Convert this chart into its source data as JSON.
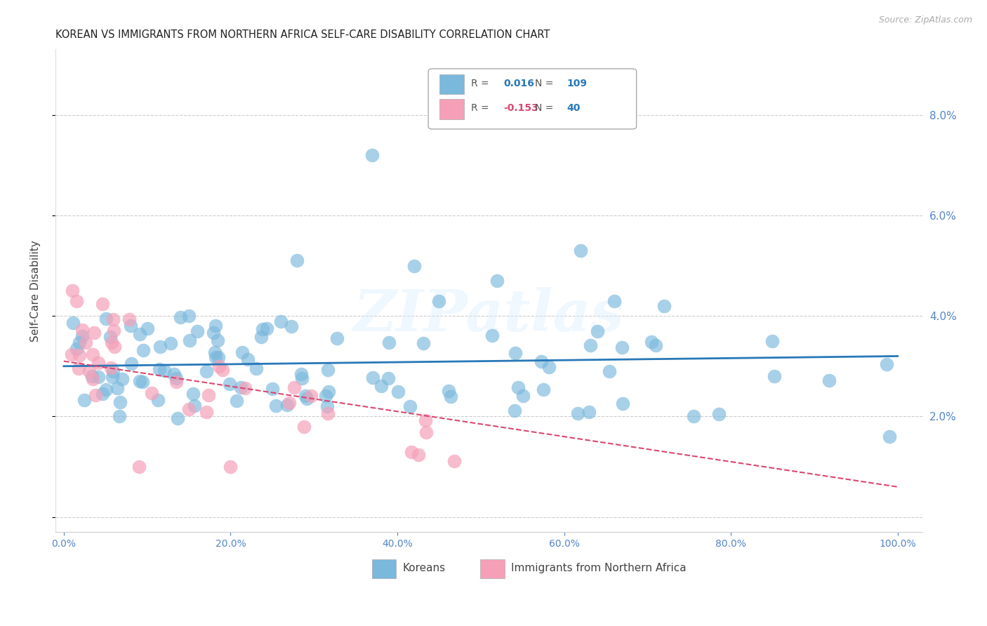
{
  "title": "KOREAN VS IMMIGRANTS FROM NORTHERN AFRICA SELF-CARE DISABILITY CORRELATION CHART",
  "source": "Source: ZipAtlas.com",
  "ylabel": "Self-Care Disability",
  "blue_color": "#7ab8dc",
  "blue_line_color": "#2878b8",
  "pink_color": "#f5a0b8",
  "pink_line_color": "#d84870",
  "axis_color": "#5585c8",
  "background_color": "#ffffff",
  "grid_color": "#cccccc",
  "watermark": "ZIPatlas",
  "koreans_R": "0.016",
  "koreans_N": "109",
  "nafr_R": "-0.153",
  "nafr_N": "40",
  "blue_trend_slope": 0.002,
  "blue_trend_intercept": 0.03,
  "pink_trend_slope": -0.025,
  "pink_trend_intercept": 0.031
}
